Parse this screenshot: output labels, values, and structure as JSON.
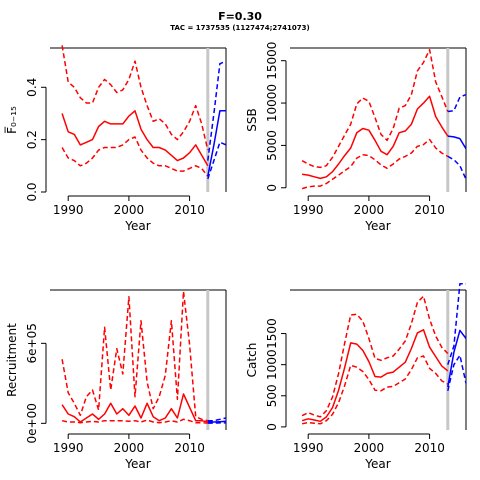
{
  "figure": {
    "title": "F=0.30",
    "subtitle": "TAC = 1737535 (1127474;2741073)"
  },
  "chart_data": [
    {
      "type": "line",
      "panel": "fbar",
      "xlabel": "Year",
      "ylabel": "F̅₀₋₁₅",
      "xlim": [
        1987,
        2016
      ],
      "ylim": [
        0,
        0.55
      ],
      "xticks": [
        1990,
        2000,
        2010
      ],
      "yticks": [
        0.0,
        0.2,
        0.4
      ],
      "ytick_labels": [
        "0.0",
        "0.2",
        "0.4"
      ],
      "vline": 2013,
      "x": [
        1989,
        1990,
        1991,
        1992,
        1993,
        1994,
        1995,
        1996,
        1997,
        1998,
        1999,
        2000,
        2001,
        2002,
        2003,
        2004,
        2005,
        2006,
        2007,
        2008,
        2009,
        2010,
        2011,
        2012,
        2013
      ],
      "series": [
        {
          "role": "median",
          "color": "#ff0000",
          "dash": false,
          "values": [
            0.3,
            0.23,
            0.22,
            0.18,
            0.19,
            0.2,
            0.25,
            0.27,
            0.26,
            0.26,
            0.26,
            0.29,
            0.31,
            0.24,
            0.2,
            0.17,
            0.17,
            0.16,
            0.14,
            0.12,
            0.13,
            0.15,
            0.18,
            0.14,
            0.1
          ]
        },
        {
          "role": "upper",
          "color": "#ff0000",
          "dash": true,
          "values": [
            0.56,
            0.42,
            0.4,
            0.36,
            0.34,
            0.34,
            0.4,
            0.43,
            0.41,
            0.38,
            0.39,
            0.43,
            0.5,
            0.4,
            0.33,
            0.27,
            0.28,
            0.26,
            0.22,
            0.2,
            0.23,
            0.27,
            0.33,
            0.26,
            0.16
          ]
        },
        {
          "role": "lower",
          "color": "#ff0000",
          "dash": true,
          "values": [
            0.17,
            0.13,
            0.12,
            0.1,
            0.11,
            0.13,
            0.16,
            0.17,
            0.17,
            0.17,
            0.18,
            0.2,
            0.21,
            0.16,
            0.13,
            0.11,
            0.1,
            0.1,
            0.09,
            0.08,
            0.08,
            0.09,
            0.1,
            0.09,
            0.06
          ]
        },
        {
          "role": "proj-median",
          "color": "#0000ff",
          "dash": false,
          "x": [
            2013,
            2014,
            2015,
            2016
          ],
          "values": [
            0.06,
            0.18,
            0.31,
            0.31
          ]
        },
        {
          "role": "proj-upper",
          "color": "#0000ff",
          "dash": true,
          "x": [
            2013,
            2014,
            2015,
            2016
          ],
          "values": [
            0.12,
            0.3,
            0.49,
            0.5
          ]
        },
        {
          "role": "proj-lower",
          "color": "#0000ff",
          "dash": true,
          "x": [
            2013,
            2014,
            2015,
            2016
          ],
          "values": [
            0.05,
            0.12,
            0.19,
            0.18
          ]
        }
      ]
    },
    {
      "type": "line",
      "panel": "ssb",
      "xlabel": "Year",
      "ylabel": "SSB",
      "xlim": [
        1987,
        2016
      ],
      "ylim": [
        -500,
        16500
      ],
      "xticks": [
        1990,
        2000,
        2010
      ],
      "yticks": [
        0,
        5000,
        10000,
        15000
      ],
      "ytick_labels": [
        "0",
        "5000",
        "10000",
        "15000"
      ],
      "vline": 2013,
      "x": [
        1989,
        1990,
        1991,
        1992,
        1993,
        1994,
        1995,
        1996,
        1997,
        1998,
        1999,
        2000,
        2001,
        2002,
        2003,
        2004,
        2005,
        2006,
        2007,
        2008,
        2009,
        2010,
        2011,
        2012,
        2013
      ],
      "series": [
        {
          "role": "median",
          "color": "#ff0000",
          "dash": false,
          "values": [
            1600,
            1500,
            1300,
            1100,
            1300,
            1900,
            2800,
            3800,
            4700,
            6500,
            7000,
            6800,
            5600,
            4300,
            3900,
            4900,
            6500,
            6700,
            7500,
            9300,
            10000,
            10800,
            8400,
            7200,
            6100
          ]
        },
        {
          "role": "upper",
          "color": "#ff0000",
          "dash": true,
          "values": [
            3200,
            2800,
            2500,
            2400,
            2600,
            3600,
            4900,
            6200,
            7500,
            9900,
            10600,
            10200,
            8300,
            6300,
            5600,
            7000,
            9400,
            9700,
            11000,
            13800,
            14800,
            16300,
            12500,
            10800,
            9000
          ]
        },
        {
          "role": "lower",
          "color": "#ff0000",
          "dash": true,
          "values": [
            -100,
            100,
            200,
            200,
            500,
            1000,
            1500,
            2000,
            2500,
            3500,
            3900,
            3800,
            3300,
            2700,
            2300,
            2800,
            3400,
            3700,
            4100,
            4900,
            5100,
            5700,
            4700,
            4100,
            3700
          ]
        },
        {
          "role": "proj-median",
          "color": "#0000ff",
          "dash": false,
          "x": [
            2013,
            2014,
            2015,
            2016
          ],
          "values": [
            6100,
            6000,
            5800,
            4600
          ]
        },
        {
          "role": "proj-upper",
          "color": "#0000ff",
          "dash": true,
          "x": [
            2013,
            2014,
            2015,
            2016
          ],
          "values": [
            9000,
            9100,
            10700,
            11000
          ]
        },
        {
          "role": "proj-lower",
          "color": "#0000ff",
          "dash": true,
          "x": [
            2013,
            2014,
            2015,
            2016
          ],
          "values": [
            3700,
            3300,
            2600,
            1000
          ]
        }
      ]
    },
    {
      "type": "line",
      "panel": "recruitment",
      "xlabel": "Year",
      "ylabel": "Recruitment",
      "xlim": [
        1987,
        2016
      ],
      "ylim": [
        -50000,
        1000000
      ],
      "xticks": [
        1990,
        2000,
        2010
      ],
      "yticks": [
        0,
        600000
      ],
      "ytick_labels": [
        "0e+00",
        "6e+05"
      ],
      "vline": 2013,
      "x": [
        1989,
        1990,
        1991,
        1992,
        1993,
        1994,
        1995,
        1996,
        1997,
        1998,
        1999,
        2000,
        2001,
        2002,
        2003,
        2004,
        2005,
        2006,
        2007,
        2008,
        2009,
        2010,
        2011,
        2012,
        2013
      ],
      "series": [
        {
          "role": "median",
          "color": "#ff0000",
          "dash": false,
          "values": [
            140000,
            70000,
            50000,
            10000,
            40000,
            70000,
            30000,
            70000,
            150000,
            70000,
            110000,
            60000,
            130000,
            40000,
            150000,
            50000,
            20000,
            40000,
            110000,
            40000,
            220000,
            120000,
            20000,
            20000,
            10000
          ]
        },
        {
          "role": "upper",
          "color": "#ff0000",
          "dash": true,
          "values": [
            480000,
            230000,
            150000,
            60000,
            200000,
            250000,
            100000,
            720000,
            250000,
            560000,
            370000,
            950000,
            200000,
            770000,
            310000,
            110000,
            200000,
            360000,
            770000,
            180000,
            990000,
            590000,
            50000,
            30000,
            20000
          ]
        },
        {
          "role": "lower",
          "color": "#ff0000",
          "dash": true,
          "values": [
            20000,
            10000,
            10000,
            5000,
            10000,
            15000,
            10000,
            20000,
            20000,
            20000,
            20000,
            15000,
            20000,
            10000,
            25000,
            10000,
            5000,
            10000,
            20000,
            10000,
            30000,
            20000,
            5000,
            5000,
            2000
          ]
        },
        {
          "role": "proj-median",
          "color": "#0000ff",
          "dash": false,
          "x": [
            2013,
            2014,
            2015,
            2016
          ],
          "values": [
            10000,
            10000,
            12000,
            15000
          ]
        },
        {
          "role": "proj-upper",
          "color": "#0000ff",
          "dash": true,
          "x": [
            2013,
            2014,
            2015,
            2016
          ],
          "values": [
            20000,
            20000,
            30000,
            40000
          ]
        },
        {
          "role": "proj-lower",
          "color": "#0000ff",
          "dash": true,
          "x": [
            2013,
            2014,
            2015,
            2016
          ],
          "values": [
            2000,
            2000,
            3000,
            3000
          ]
        }
      ]
    },
    {
      "type": "line",
      "panel": "catch",
      "xlabel": "Year",
      "ylabel": "Catch",
      "xlim": [
        1987,
        2016
      ],
      "ylim": [
        -50,
        2200
      ],
      "xticks": [
        1990,
        2000,
        2010
      ],
      "yticks": [
        0,
        500,
        1000,
        1500
      ],
      "ytick_labels": [
        "0",
        "500",
        "1000",
        "1500"
      ],
      "vline": 2013,
      "x": [
        1989,
        1990,
        1991,
        1992,
        1993,
        1994,
        1995,
        1996,
        1997,
        1998,
        1999,
        2000,
        2001,
        2002,
        2003,
        2004,
        2005,
        2006,
        2007,
        2008,
        2009,
        2010,
        2011,
        2012,
        2013
      ],
      "series": [
        {
          "role": "median",
          "color": "#ff0000",
          "dash": false,
          "values": [
            100,
            130,
            110,
            90,
            160,
            310,
            590,
            950,
            1350,
            1330,
            1230,
            1050,
            810,
            800,
            860,
            880,
            960,
            1040,
            1260,
            1510,
            1560,
            1280,
            1130,
            980,
            900
          ]
        },
        {
          "role": "upper",
          "color": "#ff0000",
          "dash": true,
          "values": [
            180,
            230,
            190,
            160,
            260,
            480,
            860,
            1340,
            1800,
            1810,
            1700,
            1420,
            1100,
            1070,
            1110,
            1140,
            1250,
            1380,
            1660,
            2000,
            2100,
            1730,
            1460,
            1280,
            1180
          ]
        },
        {
          "role": "lower",
          "color": "#ff0000",
          "dash": true,
          "values": [
            50,
            70,
            60,
            50,
            100,
            200,
            390,
            660,
            990,
            960,
            890,
            760,
            590,
            580,
            640,
            650,
            710,
            770,
            920,
            1110,
            1140,
            940,
            860,
            740,
            690
          ]
        },
        {
          "role": "proj-median",
          "color": "#0000ff",
          "dash": false,
          "x": [
            2013,
            2014,
            2015,
            2016
          ],
          "values": [
            640,
            1200,
            1550,
            1420
          ]
        },
        {
          "role": "proj-upper",
          "color": "#0000ff",
          "dash": true,
          "x": [
            2013,
            2014,
            2015,
            2016
          ],
          "values": [
            1000,
            1300,
            2300,
            2300
          ]
        },
        {
          "role": "proj-lower",
          "color": "#0000ff",
          "dash": true,
          "x": [
            2013,
            2014,
            2015,
            2016
          ],
          "values": [
            580,
            1000,
            1150,
            700
          ]
        }
      ]
    }
  ]
}
